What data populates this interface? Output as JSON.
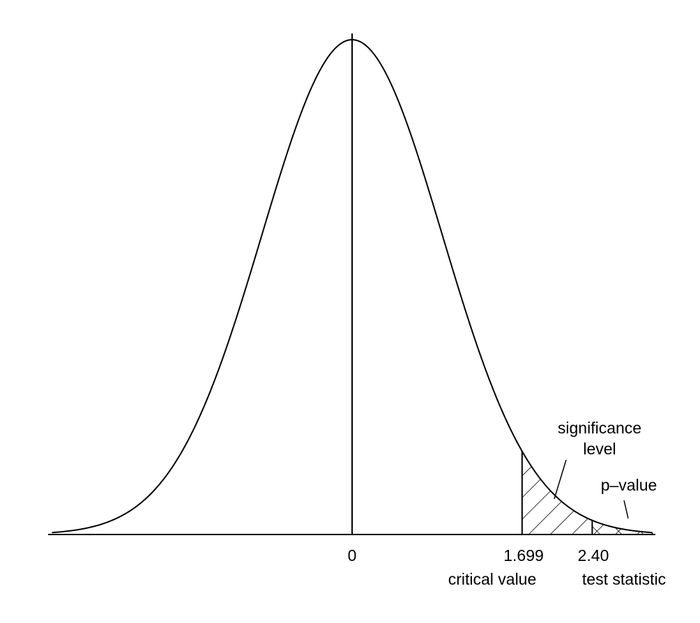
{
  "chart_data": {
    "type": "area",
    "distribution": "t",
    "x_ticks": [
      {
        "value": 0,
        "label": "0"
      },
      {
        "value": 1.699,
        "label": "1.699",
        "caption": "critical value"
      },
      {
        "value": 2.4,
        "label": "2.40",
        "caption": "test statistic"
      }
    ],
    "xlim": [
      -3.0,
      3.0
    ],
    "shaded_regions": [
      {
        "name": "significance level",
        "from": 1.699,
        "to": 3.0,
        "hatch": "single"
      },
      {
        "name": "p–value",
        "from": 2.4,
        "to": 3.0,
        "hatch": "cross"
      }
    ]
  },
  "labels": {
    "significance_line1": "significance",
    "significance_line2": "level",
    "p_value": "p–value"
  }
}
